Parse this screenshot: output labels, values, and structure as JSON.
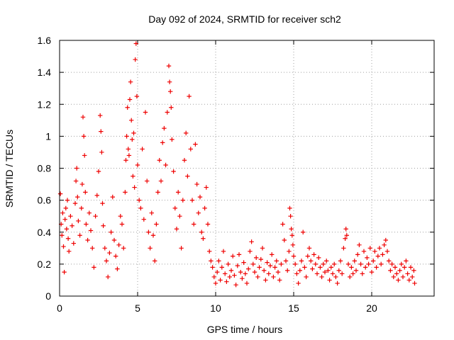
{
  "chart_data": {
    "type": "scatter",
    "title": "Day 092 of 2024, SRMTID for receiver sch2",
    "xlabel": "GPS time / hours",
    "ylabel": "SRMTID / TECUs",
    "xlim": [
      0,
      24
    ],
    "ylim": [
      0,
      1.6
    ],
    "xticks": [
      0,
      5,
      10,
      15,
      20
    ],
    "yticks": [
      0,
      0.2,
      0.4,
      0.6,
      0.8,
      1,
      1.2,
      1.4,
      1.6
    ],
    "grid": true,
    "marker": "plus",
    "color": "#ee0000",
    "series": [
      {
        "name": "sch2",
        "points": [
          [
            0.05,
            0.64
          ],
          [
            0.1,
            0.45
          ],
          [
            0.15,
            0.38
          ],
          [
            0.2,
            0.52
          ],
          [
            0.25,
            0.31
          ],
          [
            0.3,
            0.15
          ],
          [
            0.35,
            0.48
          ],
          [
            0.4,
            0.55
          ],
          [
            0.45,
            0.42
          ],
          [
            0.5,
            0.6
          ],
          [
            0.55,
            0.36
          ],
          [
            0.6,
            0.28
          ],
          [
            0.7,
            0.5
          ],
          [
            0.8,
            0.44
          ],
          [
            0.9,
            0.33
          ],
          [
            1.0,
            0.58
          ],
          [
            1.05,
            0.72
          ],
          [
            1.1,
            0.8
          ],
          [
            1.15,
            0.62
          ],
          [
            1.2,
            0.47
          ],
          [
            1.3,
            0.38
          ],
          [
            1.4,
            0.55
          ],
          [
            1.45,
            0.7
          ],
          [
            1.5,
            1.12
          ],
          [
            1.55,
            1.0
          ],
          [
            1.6,
            0.88
          ],
          [
            1.65,
            0.65
          ],
          [
            1.7,
            0.45
          ],
          [
            1.8,
            0.35
          ],
          [
            1.9,
            0.52
          ],
          [
            2.0,
            0.41
          ],
          [
            2.1,
            0.3
          ],
          [
            2.2,
            0.18
          ],
          [
            2.3,
            0.5
          ],
          [
            2.4,
            0.63
          ],
          [
            2.5,
            0.78
          ],
          [
            2.6,
            1.13
          ],
          [
            2.65,
            1.03
          ],
          [
            2.7,
            0.9
          ],
          [
            2.75,
            0.58
          ],
          [
            2.8,
            0.44
          ],
          [
            2.9,
            0.3
          ],
          [
            3.0,
            0.22
          ],
          [
            3.1,
            0.12
          ],
          [
            3.2,
            0.27
          ],
          [
            3.3,
            0.4
          ],
          [
            3.4,
            0.62
          ],
          [
            3.5,
            0.35
          ],
          [
            3.6,
            0.25
          ],
          [
            3.7,
            0.17
          ],
          [
            3.8,
            0.32
          ],
          [
            3.9,
            0.5
          ],
          [
            4.0,
            0.45
          ],
          [
            4.1,
            0.3
          ],
          [
            4.2,
            0.65
          ],
          [
            4.25,
            0.85
          ],
          [
            4.3,
            1.0
          ],
          [
            4.35,
            1.18
          ],
          [
            4.4,
            0.92
          ],
          [
            4.45,
            0.88
          ],
          [
            4.5,
            1.23
          ],
          [
            4.55,
            1.34
          ],
          [
            4.6,
            1.1
          ],
          [
            4.65,
            0.98
          ],
          [
            4.7,
            0.75
          ],
          [
            4.75,
            1.02
          ],
          [
            4.8,
            0.68
          ],
          [
            4.85,
            1.48
          ],
          [
            4.9,
            1.58
          ],
          [
            4.95,
            1.25
          ],
          [
            5.0,
            0.82
          ],
          [
            5.1,
            0.6
          ],
          [
            5.2,
            0.55
          ],
          [
            5.3,
            0.92
          ],
          [
            5.4,
            0.48
          ],
          [
            5.5,
            1.15
          ],
          [
            5.6,
            0.72
          ],
          [
            5.7,
            0.4
          ],
          [
            5.8,
            0.3
          ],
          [
            5.9,
            0.52
          ],
          [
            6.0,
            0.38
          ],
          [
            6.1,
            0.22
          ],
          [
            6.2,
            0.45
          ],
          [
            6.3,
            0.65
          ],
          [
            6.4,
            0.85
          ],
          [
            6.5,
            0.72
          ],
          [
            6.6,
            0.96
          ],
          [
            6.7,
            1.05
          ],
          [
            6.8,
            0.82
          ],
          [
            6.9,
            1.15
          ],
          [
            7.0,
            1.44
          ],
          [
            7.05,
            1.34
          ],
          [
            7.1,
            1.28
          ],
          [
            7.15,
            1.18
          ],
          [
            7.2,
            0.98
          ],
          [
            7.3,
            0.78
          ],
          [
            7.4,
            0.55
          ],
          [
            7.5,
            0.42
          ],
          [
            7.6,
            0.65
          ],
          [
            7.7,
            0.5
          ],
          [
            7.8,
            0.3
          ],
          [
            7.9,
            0.6
          ],
          [
            8.0,
            0.85
          ],
          [
            8.1,
            1.02
          ],
          [
            8.2,
            0.75
          ],
          [
            8.3,
            1.25
          ],
          [
            8.4,
            0.92
          ],
          [
            8.5,
            0.6
          ],
          [
            8.6,
            0.45
          ],
          [
            8.7,
            0.95
          ],
          [
            8.8,
            0.7
          ],
          [
            8.9,
            0.52
          ],
          [
            9.0,
            0.62
          ],
          [
            9.1,
            0.4
          ],
          [
            9.2,
            0.36
          ],
          [
            9.3,
            0.55
          ],
          [
            9.4,
            0.68
          ],
          [
            9.5,
            0.45
          ],
          [
            9.6,
            0.28
          ],
          [
            9.7,
            0.22
          ],
          [
            9.8,
            0.18
          ],
          [
            9.9,
            0.12
          ],
          [
            10.0,
            0.08
          ],
          [
            10.1,
            0.15
          ],
          [
            10.2,
            0.22
          ],
          [
            10.3,
            0.1
          ],
          [
            10.4,
            0.18
          ],
          [
            10.5,
            0.28
          ],
          [
            10.6,
            0.14
          ],
          [
            10.7,
            0.09
          ],
          [
            10.8,
            0.2
          ],
          [
            10.9,
            0.12
          ],
          [
            11.0,
            0.16
          ],
          [
            11.1,
            0.25
          ],
          [
            11.2,
            0.13
          ],
          [
            11.3,
            0.07
          ],
          [
            11.4,
            0.19
          ],
          [
            11.5,
            0.26
          ],
          [
            11.6,
            0.15
          ],
          [
            11.7,
            0.11
          ],
          [
            11.8,
            0.21
          ],
          [
            11.9,
            0.14
          ],
          [
            12.0,
            0.08
          ],
          [
            12.1,
            0.17
          ],
          [
            12.2,
            0.28
          ],
          [
            12.3,
            0.34
          ],
          [
            12.4,
            0.2
          ],
          [
            12.5,
            0.15
          ],
          [
            12.6,
            0.24
          ],
          [
            12.7,
            0.12
          ],
          [
            12.8,
            0.18
          ],
          [
            12.9,
            0.23
          ],
          [
            13.0,
            0.3
          ],
          [
            13.1,
            0.16
          ],
          [
            13.2,
            0.1
          ],
          [
            13.3,
            0.21
          ],
          [
            13.4,
            0.14
          ],
          [
            13.5,
            0.19
          ],
          [
            13.6,
            0.26
          ],
          [
            13.7,
            0.12
          ],
          [
            13.8,
            0.18
          ],
          [
            13.9,
            0.22
          ],
          [
            14.0,
            0.15
          ],
          [
            14.1,
            0.1
          ],
          [
            14.2,
            0.2
          ],
          [
            14.3,
            0.45
          ],
          [
            14.4,
            0.35
          ],
          [
            14.5,
            0.22
          ],
          [
            14.6,
            0.16
          ],
          [
            14.7,
            0.28
          ],
          [
            14.75,
            0.55
          ],
          [
            14.8,
            0.5
          ],
          [
            14.85,
            0.42
          ],
          [
            14.9,
            0.38
          ],
          [
            14.95,
            0.32
          ],
          [
            15.0,
            0.25
          ],
          [
            15.1,
            0.2
          ],
          [
            15.2,
            0.14
          ],
          [
            15.3,
            0.08
          ],
          [
            15.4,
            0.16
          ],
          [
            15.5,
            0.22
          ],
          [
            15.6,
            0.4
          ],
          [
            15.7,
            0.18
          ],
          [
            15.8,
            0.12
          ],
          [
            15.9,
            0.25
          ],
          [
            16.0,
            0.3
          ],
          [
            16.1,
            0.22
          ],
          [
            16.2,
            0.17
          ],
          [
            16.3,
            0.26
          ],
          [
            16.4,
            0.2
          ],
          [
            16.5,
            0.14
          ],
          [
            16.6,
            0.24
          ],
          [
            16.7,
            0.18
          ],
          [
            16.8,
            0.12
          ],
          [
            16.9,
            0.2
          ],
          [
            17.0,
            0.15
          ],
          [
            17.1,
            0.22
          ],
          [
            17.2,
            0.16
          ],
          [
            17.3,
            0.1
          ],
          [
            17.4,
            0.18
          ],
          [
            17.5,
            0.14
          ],
          [
            17.6,
            0.2
          ],
          [
            17.7,
            0.12
          ],
          [
            17.8,
            0.08
          ],
          [
            17.9,
            0.16
          ],
          [
            18.0,
            0.22
          ],
          [
            18.1,
            0.14
          ],
          [
            18.2,
            0.3
          ],
          [
            18.3,
            0.36
          ],
          [
            18.35,
            0.42
          ],
          [
            18.4,
            0.38
          ],
          [
            18.5,
            0.2
          ],
          [
            18.6,
            0.12
          ],
          [
            18.7,
            0.18
          ],
          [
            18.8,
            0.14
          ],
          [
            18.9,
            0.22
          ],
          [
            19.0,
            0.16
          ],
          [
            19.1,
            0.26
          ],
          [
            19.2,
            0.32
          ],
          [
            19.3,
            0.2
          ],
          [
            19.4,
            0.14
          ],
          [
            19.5,
            0.28
          ],
          [
            19.6,
            0.18
          ],
          [
            19.7,
            0.24
          ],
          [
            19.8,
            0.2
          ],
          [
            19.9,
            0.3
          ],
          [
            20.0,
            0.15
          ],
          [
            20.1,
            0.22
          ],
          [
            20.2,
            0.28
          ],
          [
            20.3,
            0.18
          ],
          [
            20.4,
            0.25
          ],
          [
            20.5,
            0.3
          ],
          [
            20.6,
            0.2
          ],
          [
            20.7,
            0.26
          ],
          [
            20.8,
            0.32
          ],
          [
            20.9,
            0.35
          ],
          [
            21.0,
            0.28
          ],
          [
            21.1,
            0.22
          ],
          [
            21.2,
            0.16
          ],
          [
            21.3,
            0.2
          ],
          [
            21.4,
            0.12
          ],
          [
            21.5,
            0.18
          ],
          [
            21.6,
            0.14
          ],
          [
            21.7,
            0.1
          ],
          [
            21.8,
            0.16
          ],
          [
            21.9,
            0.2
          ],
          [
            22.0,
            0.12
          ],
          [
            22.1,
            0.18
          ],
          [
            22.2,
            0.22
          ],
          [
            22.3,
            0.14
          ],
          [
            22.4,
            0.1
          ],
          [
            22.5,
            0.18
          ],
          [
            22.6,
            0.12
          ],
          [
            22.7,
            0.16
          ],
          [
            22.75,
            0.08
          ]
        ]
      }
    ]
  }
}
